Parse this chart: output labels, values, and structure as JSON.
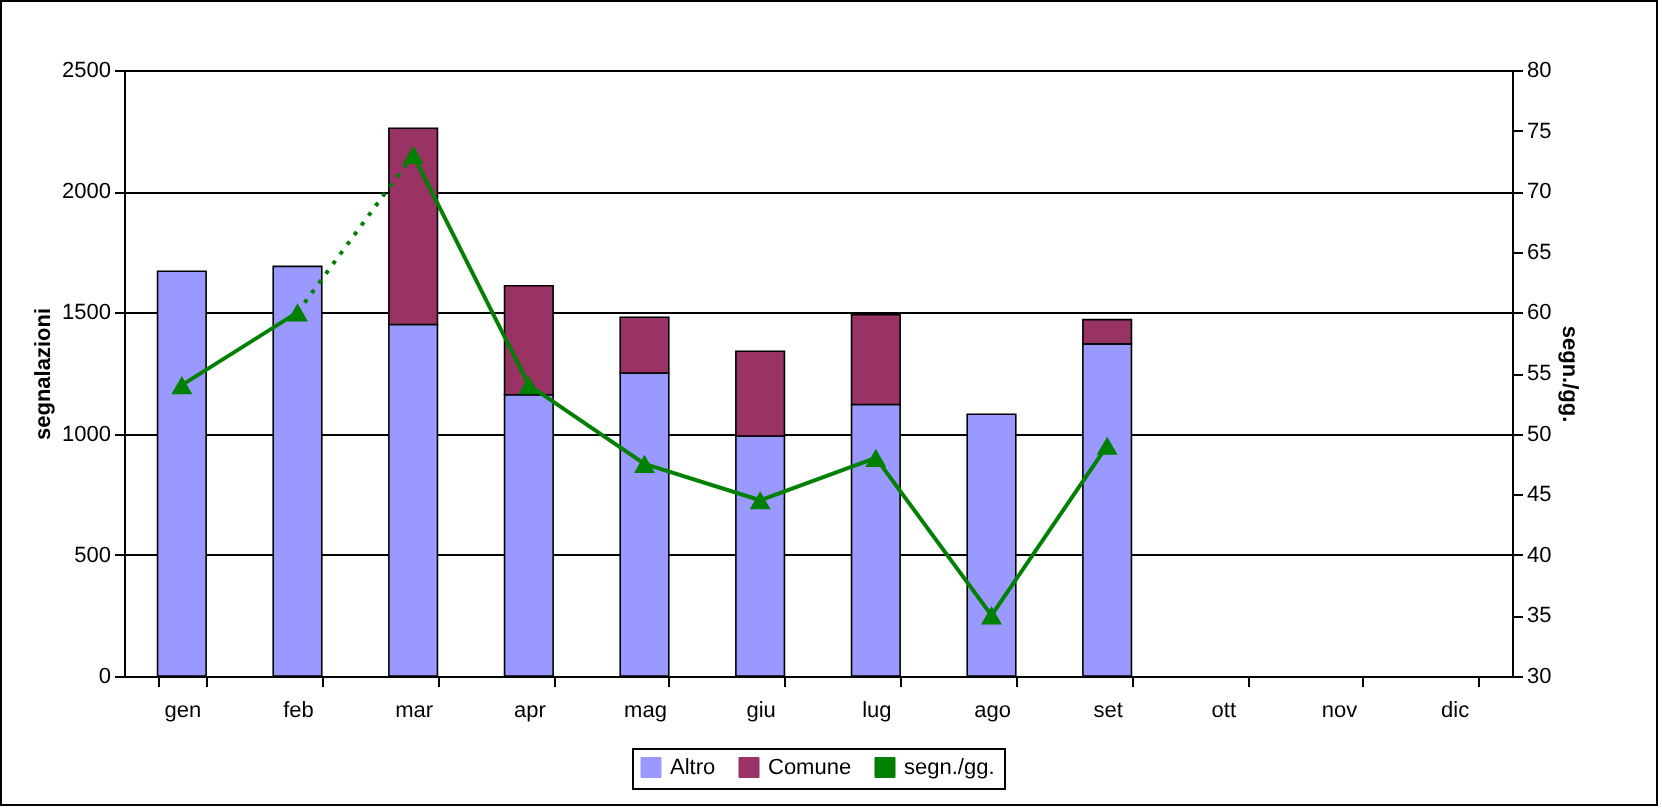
{
  "chart_data": {
    "type": "bar",
    "stacked": true,
    "categories": [
      "gen",
      "feb",
      "mar",
      "apr",
      "mag",
      "giu",
      "lug",
      "ago",
      "set",
      "ott",
      "nov",
      "dic"
    ],
    "ylabel": "segnalazioni",
    "y2label": "segn./gg.",
    "ylim": [
      0,
      2500
    ],
    "yticks": [
      0,
      500,
      1000,
      1500,
      2000,
      2500
    ],
    "y2lim": [
      30,
      80
    ],
    "y2ticks": [
      30,
      35,
      40,
      45,
      50,
      55,
      60,
      65,
      70,
      75,
      80
    ],
    "grid": "y",
    "legend": "bottom",
    "series": [
      {
        "name": "Altro",
        "color": "#9999ff",
        "values": [
          1670,
          1690,
          1450,
          1160,
          1250,
          990,
          1120,
          1080,
          1370,
          null,
          null,
          null
        ]
      },
      {
        "name": "Comune",
        "color": "#993366",
        "values": [
          null,
          null,
          810,
          450,
          230,
          350,
          370,
          null,
          100,
          null,
          null,
          null
        ]
      },
      {
        "name": "segn./gg.",
        "type": "line",
        "axis": "y2",
        "color": "#008000",
        "marker": "triangle",
        "line_style": "solid",
        "values": [
          null,
          null,
          73,
          54,
          47.5,
          44.5,
          48,
          35,
          49,
          null,
          null,
          null
        ]
      },
      {
        "type": "line",
        "axis": "y2",
        "color": "#008000",
        "marker": "triangle",
        "line_style": "solid",
        "values": [
          54,
          60,
          null,
          null,
          null,
          null,
          null,
          null,
          null,
          null,
          null,
          null
        ]
      },
      {
        "type": "line",
        "axis": "y2",
        "color": "#008000",
        "marker": "none",
        "line_style": "dotted",
        "values": [
          null,
          60,
          73,
          null,
          null,
          null,
          null,
          null,
          null,
          null,
          null,
          null
        ]
      }
    ]
  }
}
